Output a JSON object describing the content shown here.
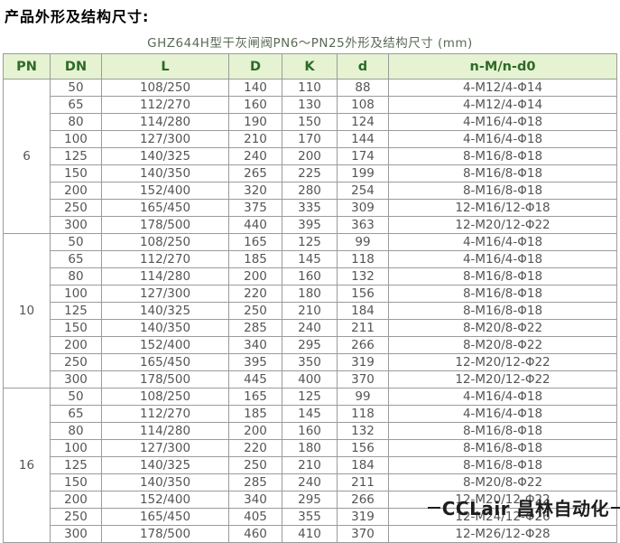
{
  "page": {
    "title": "产品外形及结构尺寸:",
    "caption": "GHZ644H型干灰闸阀PN6～PN25外形及结构尺寸 (mm)",
    "watermark": "CCLair 昌林自动化"
  },
  "colors": {
    "header_bg": "#e5f3d2",
    "header_fg": "#2e6a28",
    "body_fg": "#555555",
    "border": "#9b9b9b",
    "caption_fg": "#5a6a56"
  },
  "table": {
    "columns": [
      "PN",
      "DN",
      "L",
      "D",
      "K",
      "d",
      "n-M/n-d0"
    ],
    "groups": [
      {
        "pn": "6",
        "rows": [
          [
            "50",
            "108/250",
            "140",
            "110",
            "88",
            "4-M12/4-Φ14"
          ],
          [
            "65",
            "112/270",
            "160",
            "130",
            "108",
            "4-M12/4-Φ14"
          ],
          [
            "80",
            "114/280",
            "190",
            "150",
            "124",
            "4-M16/4-Φ18"
          ],
          [
            "100",
            "127/300",
            "210",
            "170",
            "144",
            "4-M16/4-Φ18"
          ],
          [
            "125",
            "140/325",
            "240",
            "200",
            "174",
            "8-M16/8-Φ18"
          ],
          [
            "150",
            "140/350",
            "265",
            "225",
            "199",
            "8-M16/8-Φ18"
          ],
          [
            "200",
            "152/400",
            "320",
            "280",
            "254",
            "8-M16/8-Φ18"
          ],
          [
            "250",
            "165/450",
            "375",
            "335",
            "309",
            "12-M16/12-Φ18"
          ],
          [
            "300",
            "178/500",
            "440",
            "395",
            "363",
            "12-M20/12-Φ22"
          ]
        ]
      },
      {
        "pn": "10",
        "rows": [
          [
            "50",
            "108/250",
            "165",
            "125",
            "99",
            "4-M16/4-Φ18"
          ],
          [
            "65",
            "112/270",
            "185",
            "145",
            "118",
            "4-M16/4-Φ18"
          ],
          [
            "80",
            "114/280",
            "200",
            "160",
            "132",
            "8-M16/8-Φ18"
          ],
          [
            "100",
            "127/300",
            "220",
            "180",
            "156",
            "8-M16/8-Φ18"
          ],
          [
            "125",
            "140/325",
            "250",
            "210",
            "184",
            "8-M16/8-Φ18"
          ],
          [
            "150",
            "140/350",
            "285",
            "240",
            "211",
            "8-M20/8-Φ22"
          ],
          [
            "200",
            "152/400",
            "340",
            "295",
            "266",
            "8-M20/8-Φ22"
          ],
          [
            "250",
            "165/450",
            "395",
            "350",
            "319",
            "12-M20/12-Φ22"
          ],
          [
            "300",
            "178/500",
            "445",
            "400",
            "370",
            "12-M20/12-Φ22"
          ]
        ]
      },
      {
        "pn": "16",
        "rows": [
          [
            "50",
            "108/250",
            "165",
            "125",
            "99",
            "4-M16/4-Φ18"
          ],
          [
            "65",
            "112/270",
            "185",
            "145",
            "118",
            "4-M16/4-Φ18"
          ],
          [
            "80",
            "114/280",
            "200",
            "160",
            "132",
            "8-M16/8-Φ18"
          ],
          [
            "100",
            "127/300",
            "220",
            "180",
            "156",
            "8-M16/8-Φ18"
          ],
          [
            "125",
            "140/325",
            "250",
            "210",
            "184",
            "8-M16/8-Φ18"
          ],
          [
            "150",
            "140/350",
            "285",
            "240",
            "211",
            "8-M20/8-Φ22"
          ],
          [
            "200",
            "152/400",
            "340",
            "295",
            "266",
            "12-M20/12-Φ22"
          ],
          [
            "250",
            "165/450",
            "405",
            "355",
            "319",
            "12-M24/12-Φ26"
          ],
          [
            "300",
            "178/500",
            "460",
            "410",
            "370",
            "12-M26/12-Φ28"
          ]
        ]
      }
    ]
  }
}
